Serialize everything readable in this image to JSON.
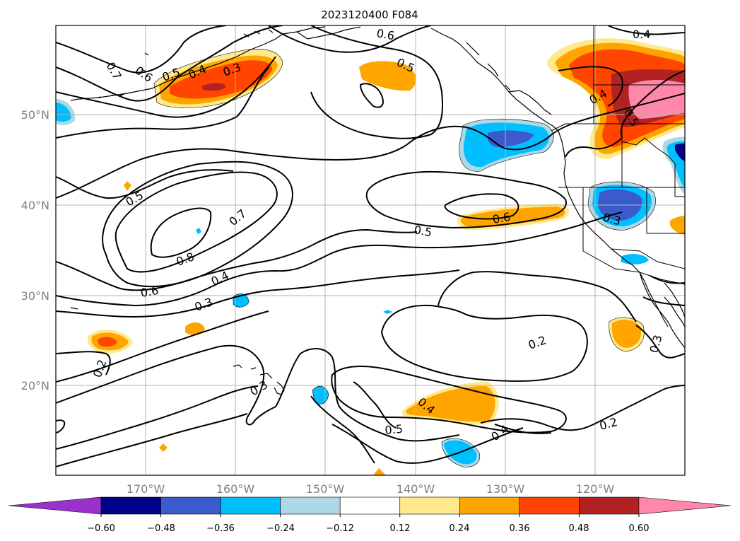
{
  "title": "2023120400 F084",
  "map": {
    "lat_labels": [
      "50°N",
      "40°N",
      "30°N",
      "20°N"
    ],
    "lon_labels": [
      "170°W",
      "160°W",
      "150°W",
      "140°W",
      "130°W",
      "120°W"
    ],
    "contour_labels": [
      "0.7",
      "0.6",
      "0.5",
      "0.4",
      "0.3",
      "0.6",
      "0.5",
      "0.4",
      "0.5",
      "0.4",
      "0.5",
      "0.7",
      "0.8",
      "0.6",
      "0.4",
      "0.3",
      "0.6",
      "0.5",
      "0.3",
      "0.2",
      "0.2",
      "0.3",
      "0.4",
      "0.5",
      "0.4",
      "0.2",
      "0.3"
    ]
  },
  "colorbar": {
    "ticks": [
      "−0.60",
      "−0.48",
      "−0.36",
      "−0.24",
      "−0.12",
      "0.12",
      "0.24",
      "0.36",
      "0.48",
      "0.60"
    ],
    "colors": [
      "#9932cc",
      "#00008b",
      "#3b5bcc",
      "#00bfff",
      "#add8e6",
      "#ffffff",
      "#ffe98a",
      "#ffa500",
      "#ff4500",
      "#b22222",
      "#ff88aa"
    ]
  }
}
